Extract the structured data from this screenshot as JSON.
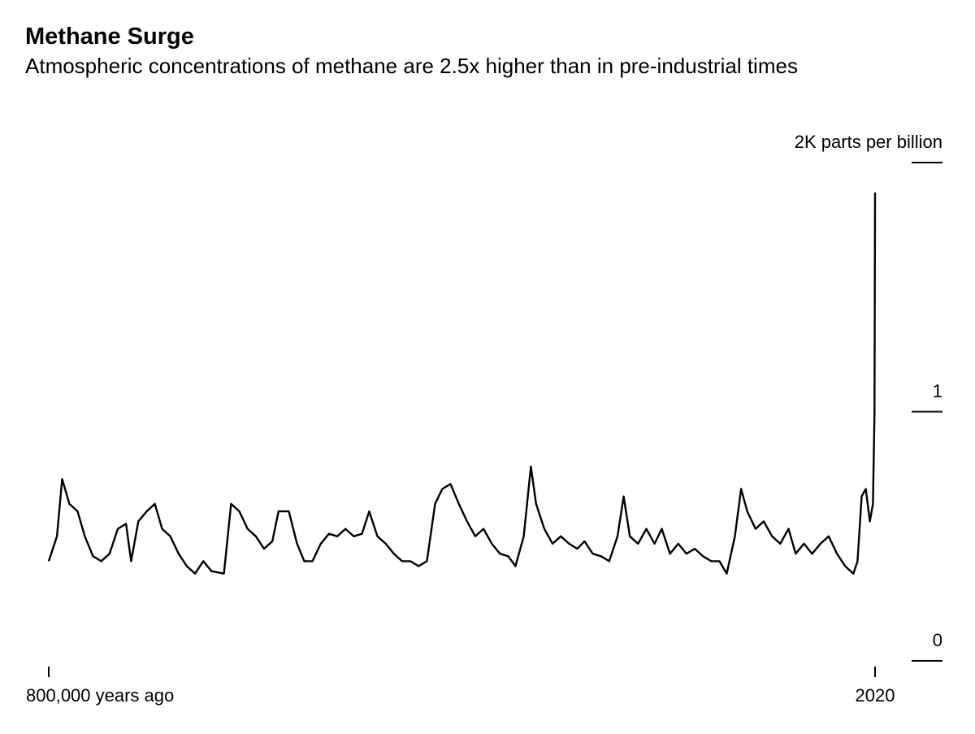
{
  "chart_data": {
    "type": "line",
    "title": "Methane Surge",
    "subtitle": "Atmospheric concentrations of methane are 2.5x higher than in pre-industrial times",
    "xlim": [
      -800000,
      2020
    ],
    "xticks": [
      {
        "value": -800000,
        "label": "800,000 years ago"
      },
      {
        "value": 2020,
        "label": "2020"
      }
    ],
    "ylim": [
      0,
      2
    ],
    "yticks": [
      0,
      1,
      {
        "value": 2,
        "label": "2K parts per billion"
      }
    ],
    "grid": false,
    "series": [
      {
        "color": "#000000",
        "x": [
          -800000,
          -792000,
          -787000,
          -780000,
          -772000,
          -765000,
          -757000,
          -749000,
          -741000,
          -733000,
          -725000,
          -720000,
          -713000,
          -705000,
          -697000,
          -690000,
          -682000,
          -674000,
          -666000,
          -658000,
          -650000,
          -642000,
          -630000,
          -623000,
          -615000,
          -607000,
          -599000,
          -591000,
          -583000,
          -577000,
          -567000,
          -559000,
          -552000,
          -544000,
          -536000,
          -528000,
          -520000,
          -512000,
          -504000,
          -496000,
          -489000,
          -481000,
          -473000,
          -465000,
          -457000,
          -449000,
          -441000,
          -433000,
          -425000,
          -418000,
          -410000,
          -402000,
          -394000,
          -386000,
          -378000,
          -370000,
          -362000,
          -354000,
          -347000,
          -339000,
          -332000,
          -327000,
          -319000,
          -311000,
          -303000,
          -295000,
          -287000,
          -280000,
          -272000,
          -264000,
          -256000,
          -248000,
          -242000,
          -236000,
          -228000,
          -220000,
          -212000,
          -205000,
          -197000,
          -189000,
          -181000,
          -173000,
          -165000,
          -157000,
          -149000,
          -142000,
          -134000,
          -128000,
          -122000,
          -114000,
          -106000,
          -98000,
          -90000,
          -82000,
          -75000,
          -67000,
          -59000,
          -51000,
          -43000,
          -35000,
          -27000,
          -19000,
          -15000,
          -11000,
          -7000,
          -3000,
          0,
          1500,
          2020
        ],
        "values": [
          0.4,
          0.5,
          0.73,
          0.63,
          0.6,
          0.5,
          0.42,
          0.4,
          0.43,
          0.53,
          0.55,
          0.4,
          0.56,
          0.6,
          0.63,
          0.53,
          0.5,
          0.43,
          0.38,
          0.35,
          0.4,
          0.36,
          0.35,
          0.63,
          0.6,
          0.53,
          0.5,
          0.45,
          0.48,
          0.6,
          0.6,
          0.47,
          0.4,
          0.4,
          0.47,
          0.51,
          0.5,
          0.53,
          0.5,
          0.51,
          0.6,
          0.5,
          0.47,
          0.43,
          0.4,
          0.4,
          0.38,
          0.4,
          0.63,
          0.69,
          0.71,
          0.63,
          0.56,
          0.5,
          0.53,
          0.47,
          0.43,
          0.42,
          0.38,
          0.5,
          0.78,
          0.63,
          0.53,
          0.47,
          0.5,
          0.47,
          0.45,
          0.48,
          0.43,
          0.42,
          0.4,
          0.5,
          0.66,
          0.5,
          0.47,
          0.53,
          0.47,
          0.53,
          0.43,
          0.47,
          0.43,
          0.45,
          0.42,
          0.4,
          0.4,
          0.35,
          0.5,
          0.69,
          0.6,
          0.53,
          0.56,
          0.5,
          0.47,
          0.53,
          0.43,
          0.47,
          0.43,
          0.47,
          0.5,
          0.43,
          0.38,
          0.35,
          0.4,
          0.66,
          0.69,
          0.56,
          0.63,
          0.99,
          1.88
        ]
      }
    ]
  }
}
